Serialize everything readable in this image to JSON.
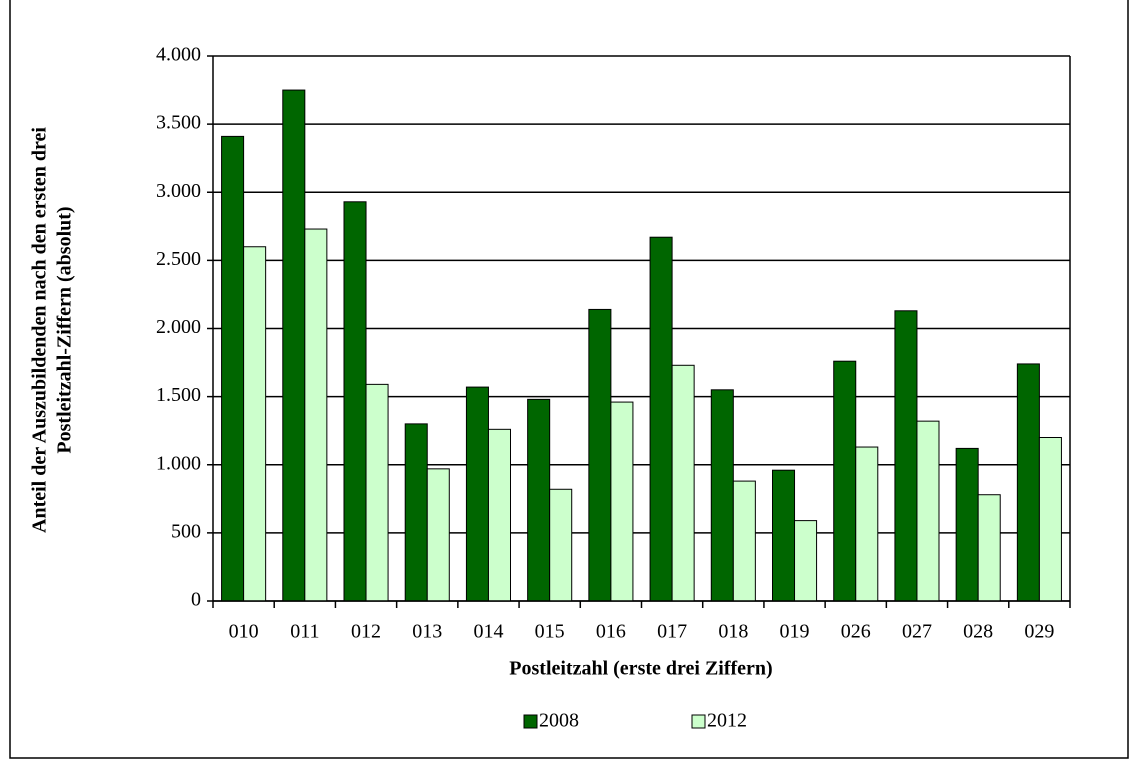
{
  "chart_data": {
    "type": "bar",
    "x_label": "Postleitzahl (erste drei Ziffern)",
    "y_label": [
      "Anteil der Auszubildenden nach den ersten drei",
      "Postleitzahl-Ziffern (absolut)"
    ],
    "categories": [
      "010",
      "011",
      "012",
      "013",
      "014",
      "015",
      "016",
      "017",
      "018",
      "019",
      "026",
      "027",
      "028",
      "029"
    ],
    "series": [
      {
        "name": "2008",
        "color": "#006600",
        "values": [
          3410,
          3750,
          2930,
          1300,
          1570,
          1480,
          2140,
          2670,
          1550,
          960,
          1760,
          2130,
          1120,
          1740
        ]
      },
      {
        "name": "2012",
        "color": "#ccffcc",
        "values": [
          2600,
          2730,
          1590,
          970,
          1260,
          820,
          1460,
          1730,
          880,
          590,
          1130,
          1320,
          780,
          1200
        ]
      }
    ],
    "ylim": [
      0,
      4000
    ],
    "yticks": [
      0,
      500,
      {
        "value": 1000,
        "label": "1.000"
      },
      {
        "value": 1500,
        "label": "1.500"
      },
      {
        "value": 2000,
        "label": "2.000"
      },
      {
        "value": 2500,
        "label": "2.500"
      },
      {
        "value": 3000,
        "label": "3.000"
      },
      {
        "value": 3500,
        "label": "3.500"
      },
      {
        "value": 4000,
        "label": "4.000"
      }
    ],
    "grid": true,
    "legend": "bottom"
  }
}
